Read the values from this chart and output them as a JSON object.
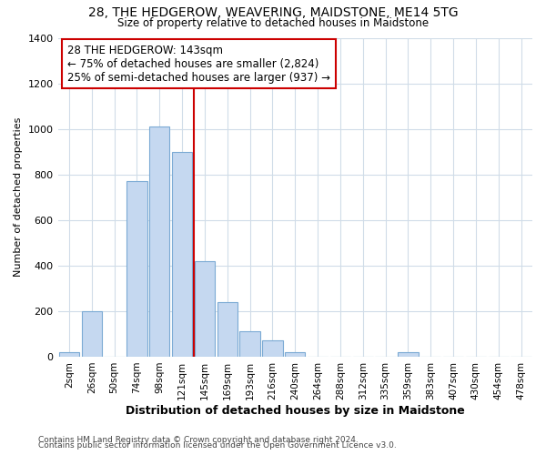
{
  "title": "28, THE HEDGEROW, WEAVERING, MAIDSTONE, ME14 5TG",
  "subtitle": "Size of property relative to detached houses in Maidstone",
  "xlabel": "Distribution of detached houses by size in Maidstone",
  "ylabel": "Number of detached properties",
  "bar_labels": [
    "2sqm",
    "26sqm",
    "50sqm",
    "74sqm",
    "98sqm",
    "121sqm",
    "145sqm",
    "169sqm",
    "193sqm",
    "216sqm",
    "240sqm",
    "264sqm",
    "288sqm",
    "312sqm",
    "335sqm",
    "359sqm",
    "383sqm",
    "407sqm",
    "430sqm",
    "454sqm",
    "478sqm"
  ],
  "bar_values": [
    20,
    200,
    0,
    770,
    1010,
    900,
    420,
    240,
    110,
    70,
    20,
    0,
    0,
    0,
    0,
    20,
    0,
    0,
    0,
    0,
    0
  ],
  "bar_color": "#c5d8f0",
  "bar_edge_color": "#7baad4",
  "ylim": [
    0,
    1400
  ],
  "yticks": [
    0,
    200,
    400,
    600,
    800,
    1000,
    1200,
    1400
  ],
  "vline_x_index": 6,
  "vline_color": "#cc0000",
  "annotation_title": "28 THE HEDGEROW: 143sqm",
  "annotation_line1": "← 75% of detached houses are smaller (2,824)",
  "annotation_line2": "25% of semi-detached houses are larger (937) →",
  "footer1": "Contains HM Land Registry data © Crown copyright and database right 2024.",
  "footer2": "Contains public sector information licensed under the Open Government Licence v3.0.",
  "background_color": "#ffffff",
  "plot_bg_color": "#ffffff",
  "grid_color": "#d0dce8"
}
